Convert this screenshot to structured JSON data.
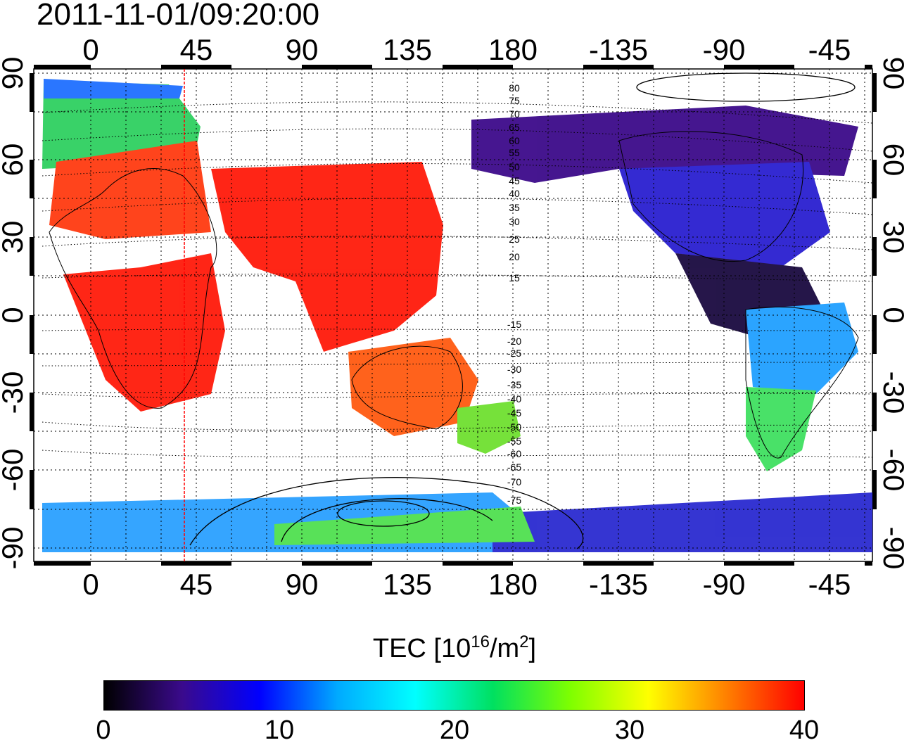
{
  "timestamp": "2011-11-01/09:20:00",
  "map": {
    "top_lon_ticks": [
      "0",
      "45",
      "90",
      "135",
      "180",
      "-135",
      "-90",
      "-45"
    ],
    "bottom_lon_ticks": [
      "0",
      "45",
      "90",
      "135",
      "180",
      "-135",
      "-90",
      "-45"
    ],
    "left_lat_ticks": [
      "90",
      "60",
      "30",
      "0",
      "-30",
      "-60",
      "-90"
    ],
    "right_lat_ticks": [
      "90",
      "60",
      "30",
      "0",
      "-30",
      "-60",
      "-90"
    ],
    "contour_labels": [
      "80",
      "75",
      "70",
      "65",
      "60",
      "55",
      "50",
      "45",
      "40",
      "35",
      "30",
      "25",
      "20",
      "15",
      "-15",
      "-20",
      "-25",
      "-30",
      "-35",
      "-40",
      "-45",
      "-50",
      "-55",
      "-60",
      "-65",
      "-70",
      "-75"
    ],
    "marker_line_color": "#ff0000",
    "regions": [
      {
        "name": "europe-high",
        "color": "#ff3a10"
      },
      {
        "name": "north-atlantic",
        "color": "#2fd060"
      },
      {
        "name": "north-europe-edge",
        "color": "#1f6fff"
      },
      {
        "name": "africa",
        "color": "#ff1a0a"
      },
      {
        "name": "asia-india",
        "color": "#ff1a0a"
      },
      {
        "name": "australia",
        "color": "#ff5a10"
      },
      {
        "name": "new-zealand",
        "color": "#6fe030"
      },
      {
        "name": "north-america",
        "color": "#2a1fd0"
      },
      {
        "name": "canada",
        "color": "#3c0a8a"
      },
      {
        "name": "central-america",
        "color": "#1a0a40"
      },
      {
        "name": "south-america",
        "color": "#20a0ff"
      },
      {
        "name": "south-america-south",
        "color": "#40e060"
      },
      {
        "name": "antarctica-east",
        "color": "#2aa0ff"
      },
      {
        "name": "antarctica-west",
        "color": "#2a2ad0"
      }
    ]
  },
  "colorbar": {
    "title_prefix": "TEC  [10",
    "title_exp1": "16",
    "title_mid": "/m",
    "title_exp2": "2",
    "title_suffix": "]",
    "ticks": [
      "0",
      "10",
      "20",
      "30",
      "40"
    ],
    "colors": [
      "#000000",
      "#3a0a8c",
      "#0000ff",
      "#00aaff",
      "#00ffff",
      "#00e060",
      "#7fff00",
      "#ffff00",
      "#ff8000",
      "#ff0000"
    ]
  }
}
